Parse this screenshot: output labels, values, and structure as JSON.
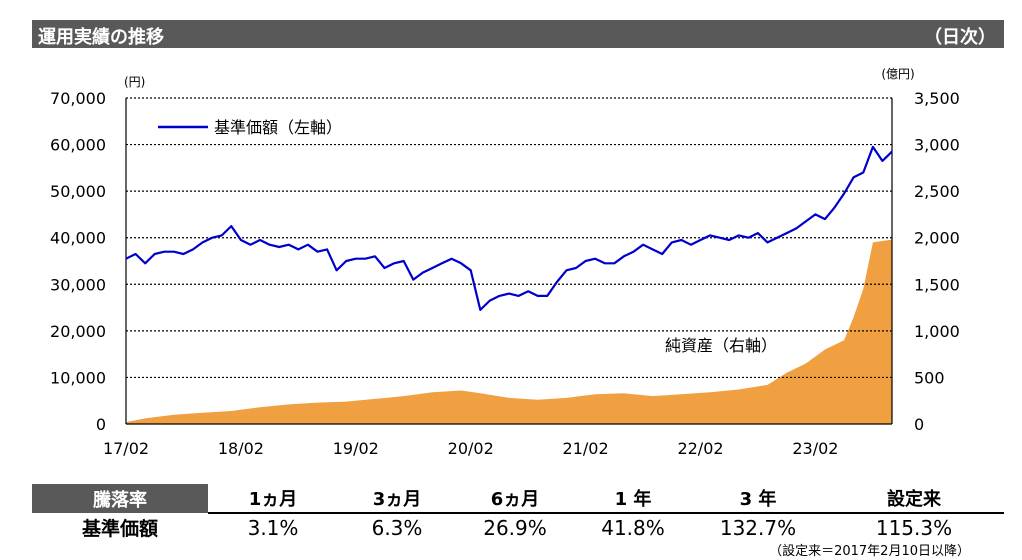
{
  "header": {
    "title": "運用実績の推移",
    "frequency": "（日次）"
  },
  "chart_data": {
    "type": "line",
    "left_axis": {
      "unit": "(円)",
      "min": 0,
      "max": 70000,
      "ticks": [
        0,
        10000,
        20000,
        30000,
        40000,
        50000,
        60000,
        70000
      ],
      "tick_labels": [
        "0",
        "10,000",
        "20,000",
        "30,000",
        "40,000",
        "50,000",
        "60,000",
        "70,000"
      ]
    },
    "right_axis": {
      "unit": "(億円)",
      "min": 0,
      "max": 3500,
      "ticks": [
        0,
        500,
        1000,
        1500,
        2000,
        2500,
        3000,
        3500
      ],
      "tick_labels": [
        "0",
        "500",
        "1,000",
        "1,500",
        "2,000",
        "2,500",
        "3,000",
        "3,500"
      ]
    },
    "x_axis": {
      "start": "2017-02",
      "end": "2023-10",
      "tick_labels": [
        "17/02",
        "18/02",
        "19/02",
        "20/02",
        "21/02",
        "22/02",
        "23/02"
      ]
    },
    "grid": "horizontal-dotted",
    "series": [
      {
        "name": "基準価額（左軸）",
        "type": "line",
        "axis": "left",
        "color": "#0000cc",
        "points": [
          [
            "2017-02",
            35500
          ],
          [
            "2017-03",
            36500
          ],
          [
            "2017-04",
            34500
          ],
          [
            "2017-05",
            36500
          ],
          [
            "2017-06",
            37000
          ],
          [
            "2017-07",
            37000
          ],
          [
            "2017-08",
            36500
          ],
          [
            "2017-09",
            37500
          ],
          [
            "2017-10",
            39000
          ],
          [
            "2017-11",
            40000
          ],
          [
            "2017-12",
            40500
          ],
          [
            "2018-01",
            42500
          ],
          [
            "2018-02",
            39500
          ],
          [
            "2018-03",
            38500
          ],
          [
            "2018-04",
            39500
          ],
          [
            "2018-05",
            38500
          ],
          [
            "2018-06",
            38000
          ],
          [
            "2018-07",
            38500
          ],
          [
            "2018-08",
            37500
          ],
          [
            "2018-09",
            38500
          ],
          [
            "2018-10",
            37000
          ],
          [
            "2018-11",
            37500
          ],
          [
            "2018-12",
            33000
          ],
          [
            "2019-01",
            35000
          ],
          [
            "2019-02",
            35500
          ],
          [
            "2019-03",
            35500
          ],
          [
            "2019-04",
            36000
          ],
          [
            "2019-05",
            33500
          ],
          [
            "2019-06",
            34500
          ],
          [
            "2019-07",
            35000
          ],
          [
            "2019-08",
            31000
          ],
          [
            "2019-09",
            32500
          ],
          [
            "2019-10",
            33500
          ],
          [
            "2019-11",
            34500
          ],
          [
            "2019-12",
            35500
          ],
          [
            "2020-01",
            34500
          ],
          [
            "2020-02",
            33000
          ],
          [
            "2020-03",
            24500
          ],
          [
            "2020-04",
            26500
          ],
          [
            "2020-05",
            27500
          ],
          [
            "2020-06",
            28000
          ],
          [
            "2020-07",
            27500
          ],
          [
            "2020-08",
            28500
          ],
          [
            "2020-09",
            27500
          ],
          [
            "2020-10",
            27500
          ],
          [
            "2020-11",
            30500
          ],
          [
            "2020-12",
            33000
          ],
          [
            "2021-01",
            33500
          ],
          [
            "2021-02",
            35000
          ],
          [
            "2021-03",
            35500
          ],
          [
            "2021-04",
            34500
          ],
          [
            "2021-05",
            34500
          ],
          [
            "2021-06",
            36000
          ],
          [
            "2021-07",
            37000
          ],
          [
            "2021-08",
            38500
          ],
          [
            "2021-09",
            37500
          ],
          [
            "2021-10",
            36500
          ],
          [
            "2021-11",
            39000
          ],
          [
            "2021-12",
            39500
          ],
          [
            "2022-01",
            38500
          ],
          [
            "2022-02",
            39500
          ],
          [
            "2022-03",
            40500
          ],
          [
            "2022-04",
            40000
          ],
          [
            "2022-05",
            39500
          ],
          [
            "2022-06",
            40500
          ],
          [
            "2022-07",
            40000
          ],
          [
            "2022-08",
            41000
          ],
          [
            "2022-09",
            39000
          ],
          [
            "2022-10",
            40000
          ],
          [
            "2022-11",
            41000
          ],
          [
            "2022-12",
            42000
          ],
          [
            "2023-01",
            43500
          ],
          [
            "2023-02",
            45000
          ],
          [
            "2023-03",
            44000
          ],
          [
            "2023-04",
            46500
          ],
          [
            "2023-05",
            49500
          ],
          [
            "2023-06",
            53000
          ],
          [
            "2023-07",
            54000
          ],
          [
            "2023-08",
            59500
          ],
          [
            "2023-09",
            56500
          ],
          [
            "2023-10",
            58500
          ]
        ]
      },
      {
        "name": "純資産（右軸）",
        "type": "area",
        "axis": "right",
        "color": "#f0a040",
        "points": [
          [
            "2017-02",
            20
          ],
          [
            "2017-04",
            60
          ],
          [
            "2017-07",
            100
          ],
          [
            "2017-10",
            120
          ],
          [
            "2018-01",
            140
          ],
          [
            "2018-04",
            180
          ],
          [
            "2018-07",
            210
          ],
          [
            "2018-10",
            230
          ],
          [
            "2019-01",
            240
          ],
          [
            "2019-04",
            270
          ],
          [
            "2019-07",
            300
          ],
          [
            "2019-10",
            340
          ],
          [
            "2020-01",
            360
          ],
          [
            "2020-03",
            330
          ],
          [
            "2020-06",
            280
          ],
          [
            "2020-09",
            260
          ],
          [
            "2020-12",
            280
          ],
          [
            "2021-03",
            320
          ],
          [
            "2021-06",
            330
          ],
          [
            "2021-09",
            300
          ],
          [
            "2021-12",
            320
          ],
          [
            "2022-03",
            340
          ],
          [
            "2022-06",
            370
          ],
          [
            "2022-09",
            420
          ],
          [
            "2022-11",
            550
          ],
          [
            "2022-12",
            600
          ],
          [
            "2023-01",
            650
          ],
          [
            "2023-03",
            800
          ],
          [
            "2023-05",
            900
          ],
          [
            "2023-06",
            1150
          ],
          [
            "2023-07",
            1450
          ],
          [
            "2023-08",
            1950
          ],
          [
            "2023-10",
            1980
          ]
        ]
      }
    ],
    "annotations": [
      {
        "text": "純資産（右軸）",
        "near": "area-series"
      }
    ]
  },
  "performance_table": {
    "header_label": "騰落率",
    "columns": [
      "1ヵ月",
      "3ヵ月",
      "6ヵ月",
      "1 年",
      "3 年",
      "設定来"
    ],
    "row_label": "基準価額",
    "values": [
      "3.1%",
      "6.3%",
      "26.9%",
      "41.8%",
      "132.7%",
      "115.3%"
    ]
  },
  "note": "（設定来＝2017年2月10日以降）"
}
